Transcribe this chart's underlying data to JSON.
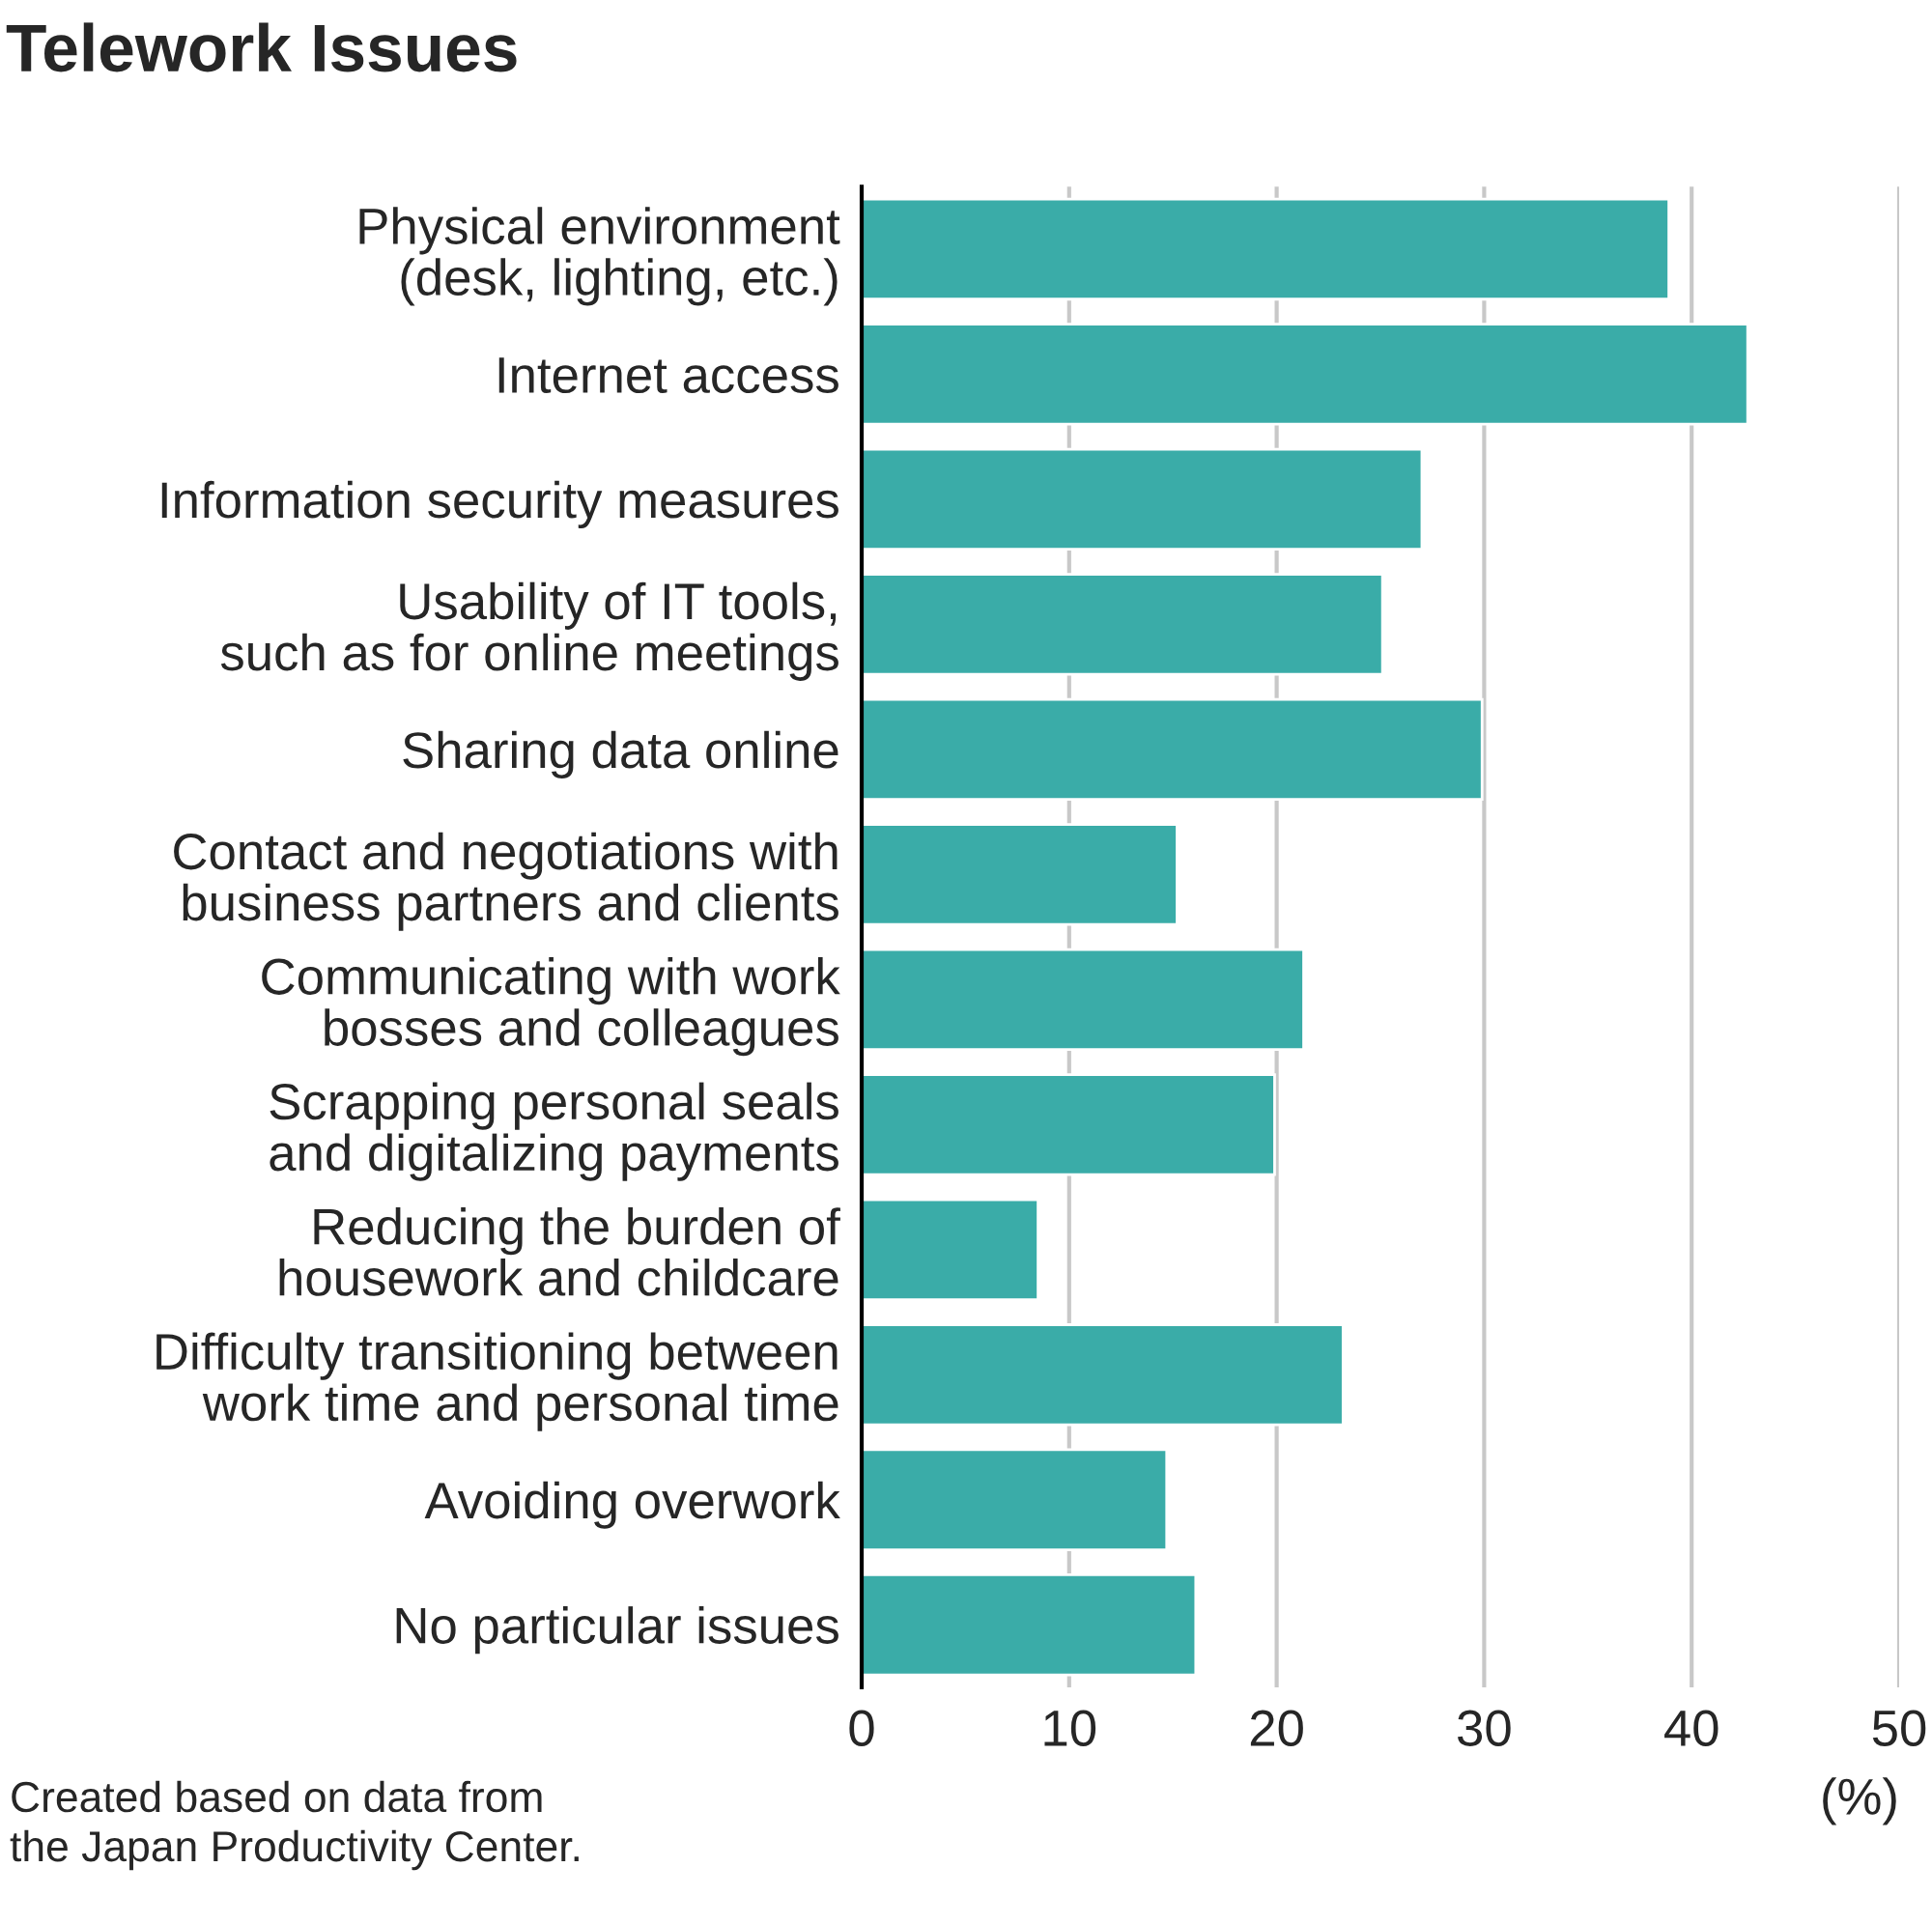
{
  "chart_data": {
    "type": "bar",
    "orientation": "horizontal",
    "title": "Telework Issues",
    "categories": [
      "Physical environment\n(desk, lighting, etc.)",
      "Internet access",
      "Information security measures",
      "Usability of IT tools,\nsuch as for online meetings",
      "Sharing data online",
      "Contact and negotiations with\nbusiness partners and clients",
      "Communicating with work\nbosses and colleagues",
      "Scrapping personal seals\nand digitalizing payments",
      "Reducing the burden of\nhousework and childcare",
      "Difficulty transitioning between\nwork time and personal time",
      "Avoiding overwork",
      "No particular issues"
    ],
    "values": [
      38.9,
      42.7,
      27.0,
      25.1,
      29.9,
      15.2,
      21.3,
      19.9,
      8.5,
      23.2,
      14.7,
      16.1
    ],
    "color": "#3aaca8",
    "xlim": [
      0,
      50
    ],
    "xticks": [
      0,
      10,
      20,
      30,
      40,
      50
    ],
    "xlabel": "(%)",
    "grid": "x",
    "annotations": [
      "Created based on data from\nthe Japan Productivity Center."
    ]
  }
}
